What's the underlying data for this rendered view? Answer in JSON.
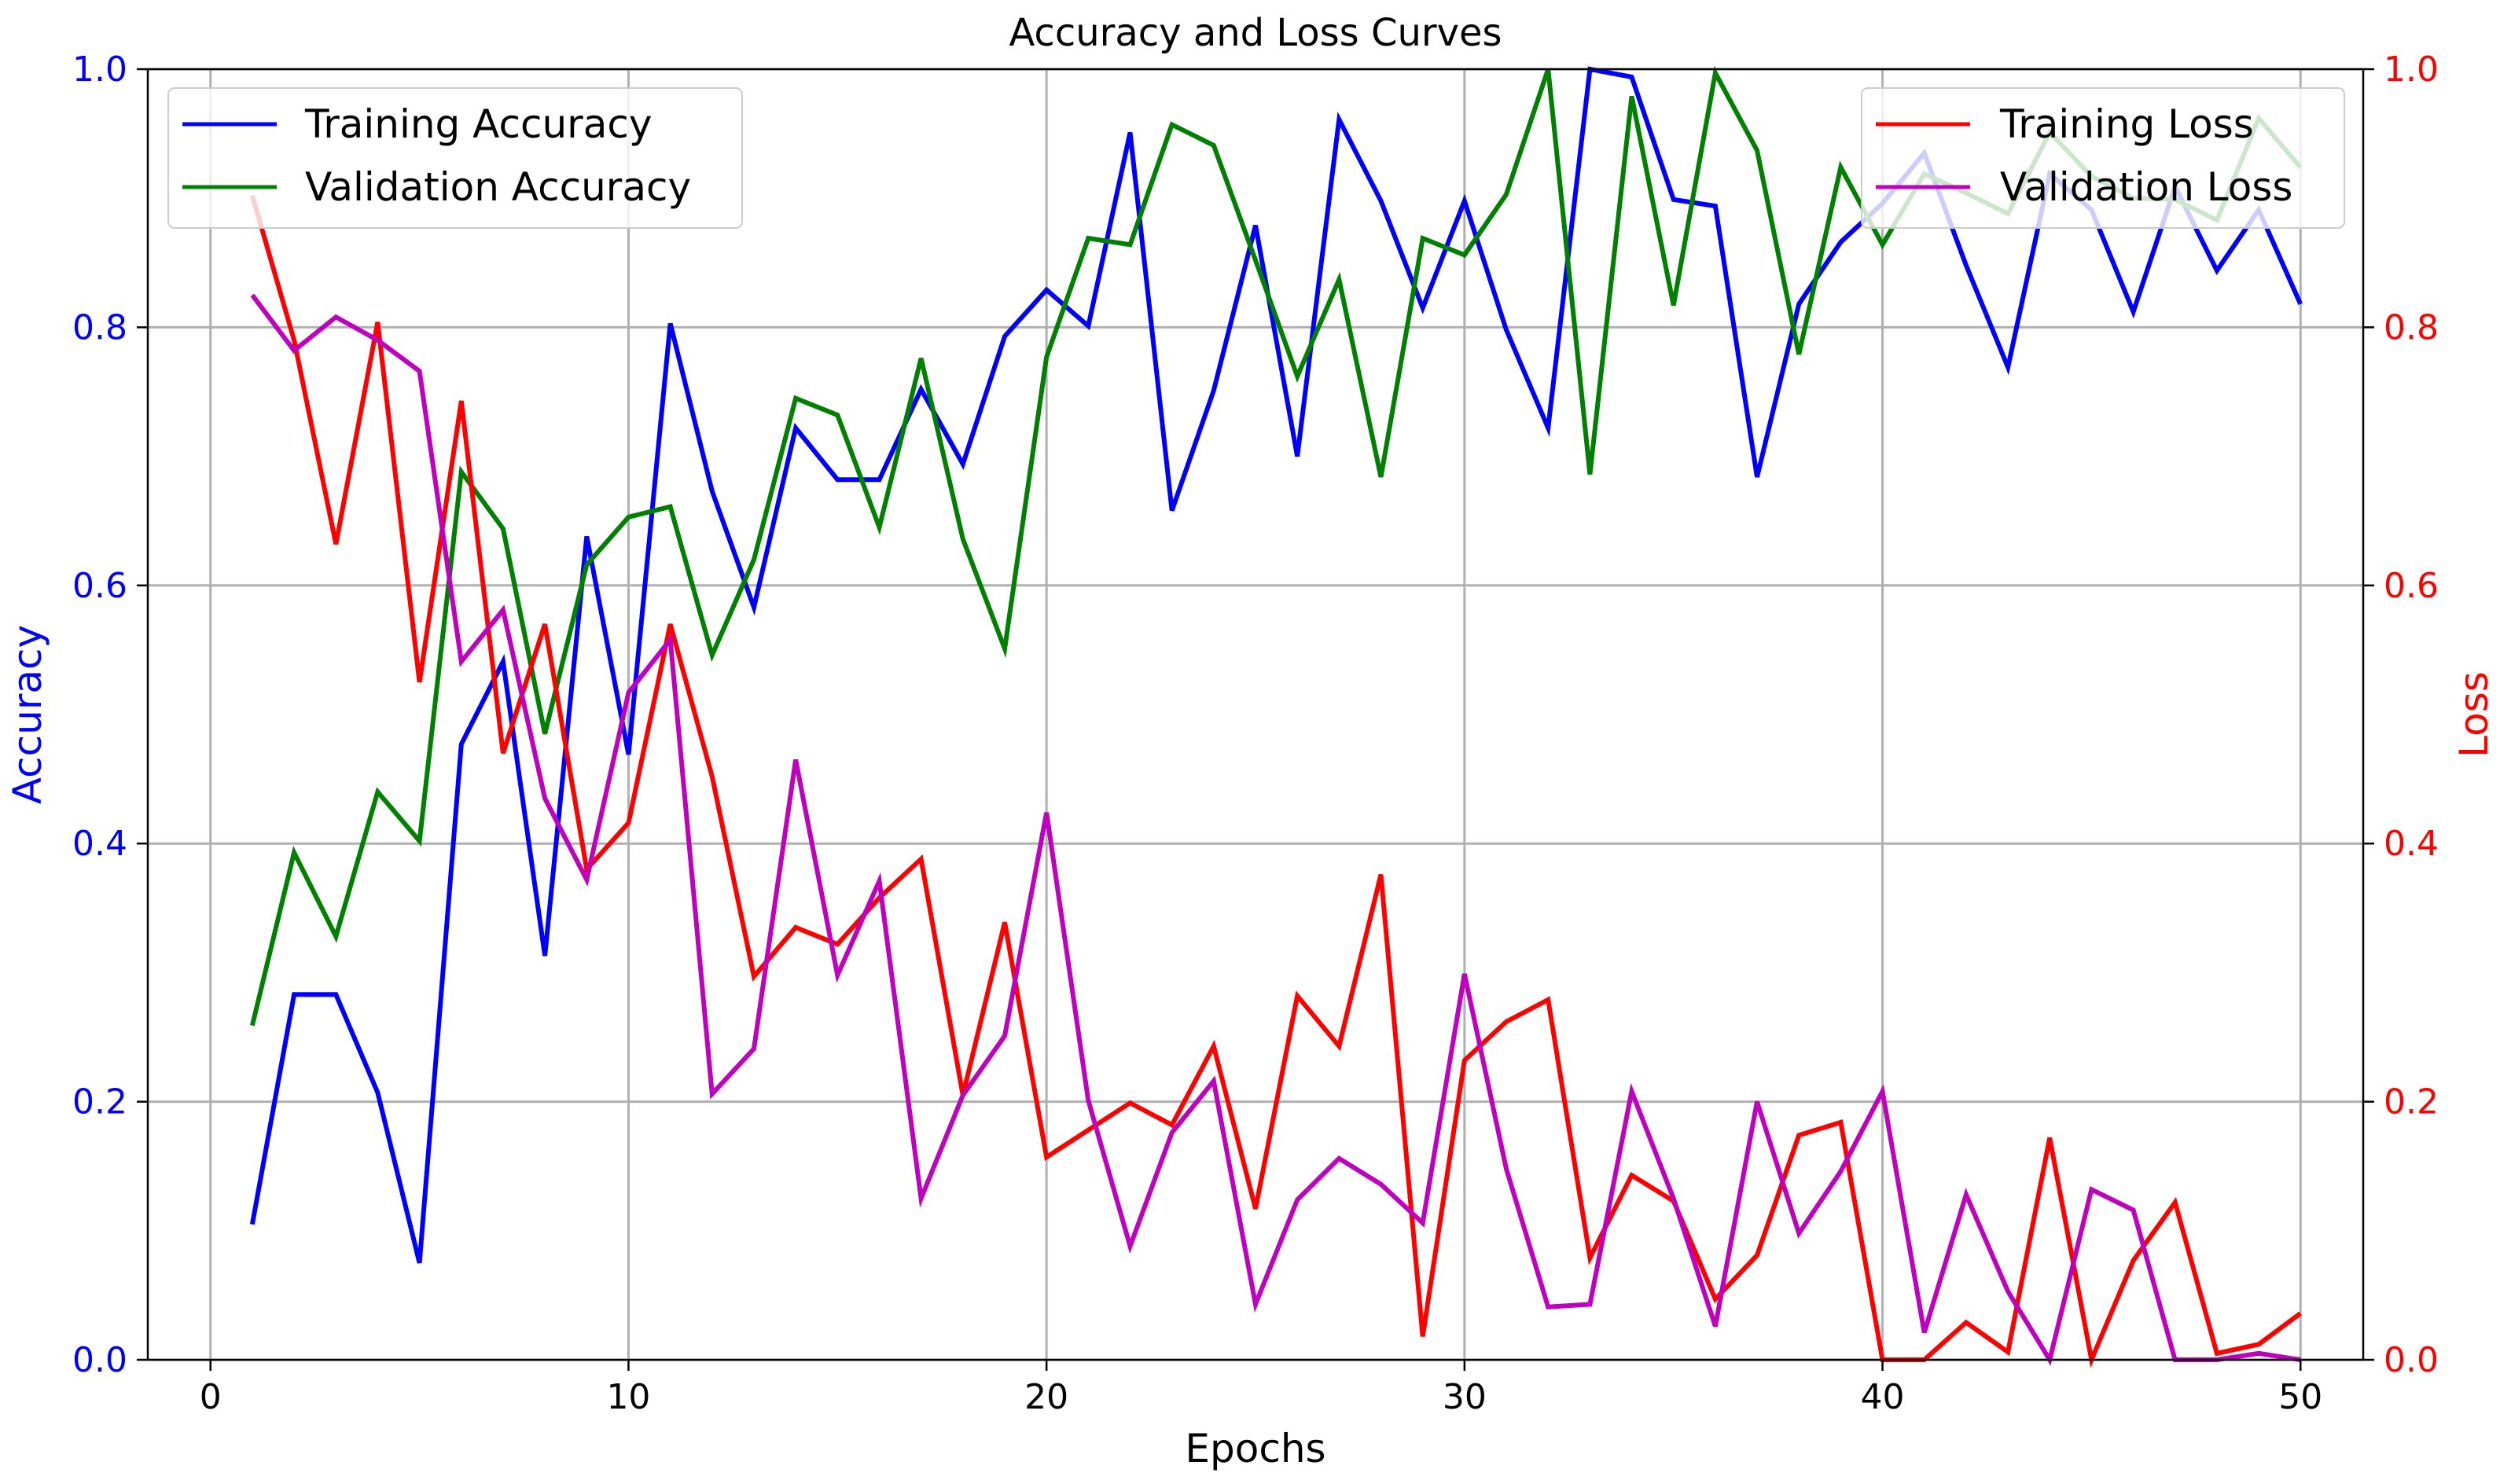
{
  "chart_data": {
    "type": "line",
    "title": "Accuracy and Loss Curves",
    "xlabel": "Epochs",
    "ylabel_left": "Accuracy",
    "ylabel_right": "Loss",
    "xlim": [
      -1.5,
      51.5
    ],
    "ylim_left": [
      0,
      1
    ],
    "ylim_right": [
      0,
      1
    ],
    "grid": true,
    "x_ticks": [
      "0",
      "10",
      "20",
      "30",
      "40",
      "50"
    ],
    "y_ticks_left": [
      "0.0",
      "0.2",
      "0.4",
      "0.6",
      "0.8",
      "1.0"
    ],
    "y_ticks_right": [
      "0.0",
      "0.2",
      "0.4",
      "0.6",
      "0.8",
      "1.0"
    ],
    "axis_colors": {
      "left": "#0000ff",
      "right": "#ff0000"
    },
    "x": [
      1,
      2,
      3,
      4,
      5,
      6,
      7,
      8,
      9,
      10,
      11,
      12,
      13,
      14,
      15,
      16,
      17,
      18,
      19,
      20,
      21,
      22,
      23,
      24,
      25,
      26,
      27,
      28,
      29,
      30,
      31,
      32,
      33,
      34,
      35,
      36,
      37,
      38,
      39,
      40,
      41,
      42,
      43,
      44,
      45,
      46,
      47,
      48,
      49,
      50
    ],
    "series_left": [
      {
        "name": "Training Accuracy",
        "color": "#0000ff",
        "values": [
          0.105,
          0.283,
          0.283,
          0.207,
          0.075,
          0.477,
          0.541,
          0.313,
          0.638,
          0.469,
          0.803,
          0.673,
          0.583,
          0.722,
          0.682,
          0.682,
          0.752,
          0.694,
          0.793,
          0.829,
          0.801,
          0.951,
          0.658,
          0.751,
          0.879,
          0.7,
          0.961,
          0.898,
          0.815,
          0.898,
          0.798,
          0.722,
          1.0,
          0.994,
          0.899,
          0.894,
          0.684,
          0.818,
          0.866,
          0.896,
          0.935,
          0.848,
          0.769,
          0.919,
          0.891,
          0.812,
          0.909,
          0.844,
          0.891,
          0.818
        ]
      },
      {
        "name": "Validation Accuracy",
        "color": "#008000",
        "values": [
          0.259,
          0.393,
          0.328,
          0.44,
          0.402,
          0.688,
          0.644,
          0.485,
          0.616,
          0.653,
          0.661,
          0.546,
          0.62,
          0.745,
          0.732,
          0.645,
          0.776,
          0.636,
          0.551,
          0.777,
          0.869,
          0.864,
          0.957,
          0.941,
          0.852,
          0.762,
          0.837,
          0.684,
          0.869,
          0.856,
          0.903,
          1.0,
          0.686,
          0.979,
          0.817,
          0.997,
          0.937,
          0.779,
          0.924,
          0.864,
          0.919,
          0.904,
          0.888,
          0.951,
          0.917,
          0.9,
          0.899,
          0.883,
          0.962,
          0.924
        ]
      }
    ],
    "series_right": [
      {
        "name": "Training Loss",
        "color": "#ff0000",
        "values": [
          0.902,
          0.79,
          0.632,
          0.804,
          0.525,
          0.743,
          0.47,
          0.57,
          0.38,
          0.416,
          0.57,
          0.452,
          0.297,
          0.335,
          0.322,
          0.358,
          0.388,
          0.205,
          0.339,
          0.157,
          0.178,
          0.199,
          0.182,
          0.243,
          0.117,
          0.282,
          0.243,
          0.376,
          0.018,
          0.232,
          0.262,
          0.279,
          0.079,
          0.143,
          0.123,
          0.047,
          0.081,
          0.174,
          0.184,
          0.0,
          0.0,
          0.029,
          0.006,
          0.172,
          0.0,
          0.077,
          0.122,
          0.005,
          0.012,
          0.036
        ]
      },
      {
        "name": "Validation Loss",
        "color": "#bf00bf",
        "values": [
          0.825,
          0.782,
          0.808,
          0.79,
          0.766,
          0.541,
          0.581,
          0.435,
          0.372,
          0.517,
          0.558,
          0.206,
          0.241,
          0.465,
          0.298,
          0.371,
          0.125,
          0.205,
          0.251,
          0.424,
          0.201,
          0.088,
          0.176,
          0.216,
          0.043,
          0.124,
          0.156,
          0.136,
          0.106,
          0.299,
          0.148,
          0.041,
          0.043,
          0.208,
          0.125,
          0.026,
          0.2,
          0.098,
          0.146,
          0.208,
          0.021,
          0.128,
          0.053,
          0.0,
          0.132,
          0.116,
          0.0,
          0.0,
          0.005,
          0.0
        ]
      }
    ],
    "legend_left_position": "upper-left",
    "legend_right_position": "upper-right"
  }
}
